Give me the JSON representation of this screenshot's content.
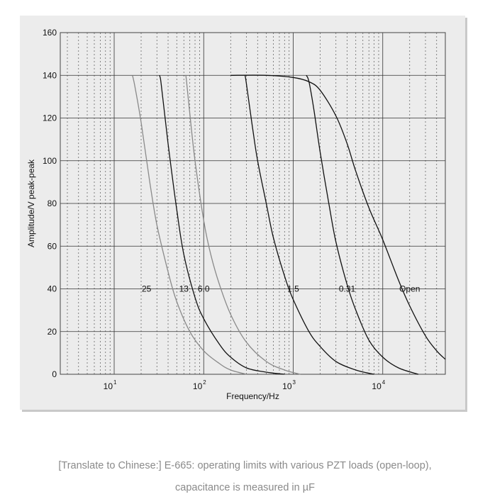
{
  "chart_data": {
    "type": "line",
    "title": "",
    "xlabel": "Frequency/Hz",
    "ylabel": "Amplitude/V peak-peak",
    "xscale": "log",
    "xlim": [
      2.5,
      50000
    ],
    "ylim": [
      0,
      160
    ],
    "yticks": [
      "0",
      "20",
      "40",
      "60",
      "80",
      "100",
      "120",
      "140",
      "160"
    ],
    "xtick_labels": [
      {
        "value": 10,
        "base": "10",
        "exp": "1"
      },
      {
        "value": 100,
        "base": "10",
        "exp": "2"
      },
      {
        "value": 1000,
        "base": "10",
        "exp": "3"
      },
      {
        "value": 10000,
        "base": "10",
        "exp": "4"
      }
    ],
    "grid": true,
    "series": [
      {
        "name": "25",
        "color": "#8a8a8a",
        "label_at": [
          23,
          40
        ],
        "points": [
          [
            16,
            140
          ],
          [
            17,
            135
          ],
          [
            20,
            118
          ],
          [
            25,
            90
          ],
          [
            30,
            70
          ],
          [
            40,
            48
          ],
          [
            50,
            34
          ],
          [
            70,
            20
          ],
          [
            100,
            11
          ],
          [
            150,
            5
          ],
          [
            200,
            2
          ],
          [
            300,
            0
          ]
        ]
      },
      {
        "name": "13",
        "color": "#111111",
        "label_at": [
          60,
          40
        ],
        "points": [
          [
            32,
            140
          ],
          [
            33,
            138
          ],
          [
            35,
            129
          ],
          [
            40,
            108
          ],
          [
            50,
            77
          ],
          [
            60,
            56
          ],
          [
            80,
            36
          ],
          [
            100,
            26
          ],
          [
            150,
            14
          ],
          [
            200,
            8
          ],
          [
            300,
            3
          ],
          [
            500,
            1
          ],
          [
            800,
            0
          ]
        ]
      },
      {
        "name": "6.0",
        "color": "#8a8a8a",
        "label_at": [
          100,
          40
        ],
        "points": [
          [
            63,
            140
          ],
          [
            64,
            138
          ],
          [
            70,
            122
          ],
          [
            80,
            100
          ],
          [
            100,
            72
          ],
          [
            120,
            56
          ],
          [
            150,
            42
          ],
          [
            200,
            28
          ],
          [
            300,
            15
          ],
          [
            500,
            6
          ],
          [
            800,
            2
          ],
          [
            1200,
            0
          ]
        ]
      },
      {
        "name": "1.5",
        "color": "#111111",
        "label_at": [
          1000,
          40
        ],
        "points": [
          [
            290,
            140
          ],
          [
            300,
            136
          ],
          [
            350,
            116
          ],
          [
            400,
            100
          ],
          [
            500,
            80
          ],
          [
            600,
            64
          ],
          [
            800,
            46
          ],
          [
            1000,
            35
          ],
          [
            1500,
            20
          ],
          [
            2000,
            13
          ],
          [
            3000,
            6
          ],
          [
            5000,
            2
          ],
          [
            8000,
            0
          ]
        ]
      },
      {
        "name": "0.31",
        "color": "#111111",
        "label_at": [
          4000,
          40
        ],
        "points": [
          [
            1400,
            140
          ],
          [
            1500,
            137
          ],
          [
            1700,
            124
          ],
          [
            2000,
            104
          ],
          [
            2500,
            80
          ],
          [
            3000,
            62
          ],
          [
            4000,
            42
          ],
          [
            5000,
            30
          ],
          [
            7000,
            16
          ],
          [
            10000,
            8
          ],
          [
            15000,
            3
          ],
          [
            25000,
            0
          ]
        ]
      },
      {
        "name": "Open",
        "color": "#111111",
        "label_at": [
          20000,
          40
        ],
        "points": [
          [
            200,
            140
          ],
          [
            500,
            140
          ],
          [
            1000,
            139
          ],
          [
            1500,
            137
          ],
          [
            2000,
            133
          ],
          [
            3000,
            121
          ],
          [
            4000,
            108
          ],
          [
            5000,
            95
          ],
          [
            7000,
            78
          ],
          [
            10000,
            63
          ],
          [
            15000,
            44
          ],
          [
            20000,
            32
          ],
          [
            30000,
            18
          ],
          [
            40000,
            11
          ],
          [
            50000,
            7
          ]
        ]
      }
    ]
  },
  "caption": {
    "line1": "[Translate to Chinese:] E-665: operating limits with various PZT loads (open-loop),",
    "line2": "capacitance is measured in µF"
  }
}
